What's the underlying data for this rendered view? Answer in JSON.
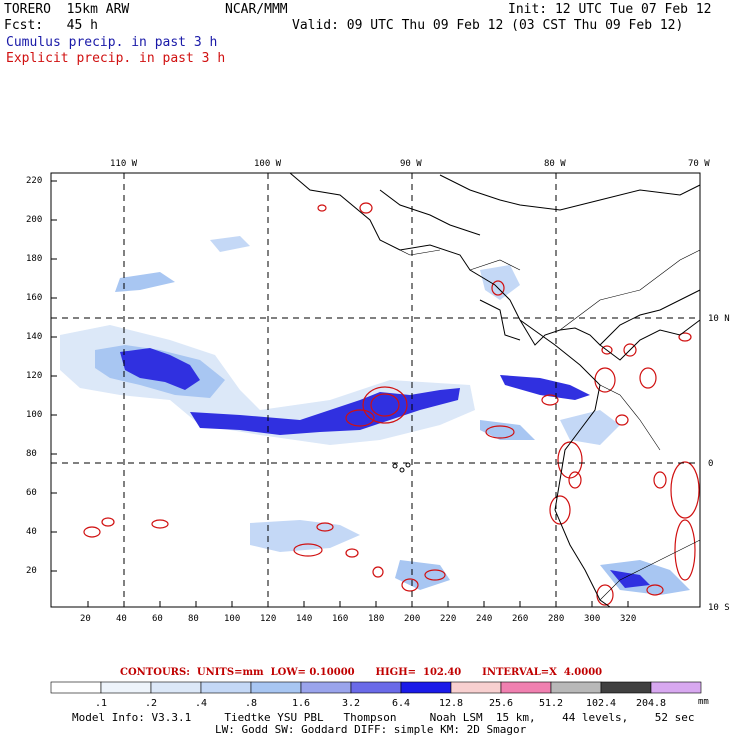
{
  "header": {
    "model": "TORERO  15km ARW",
    "org": "NCAR/MMM",
    "init": "Init: 12 UTC Tue 07 Feb 12",
    "fcst": "Fcst:   45 h",
    "valid": "Valid: 09 UTC Thu 09 Feb 12 (03 CST Thu 09 Feb 12)",
    "cumulus_label": "Cumulus precip. in past 3 h",
    "explicit_label": "Explicit precip. in past 3 h"
  },
  "axes": {
    "lon_labels": [
      "110 W",
      "100 W",
      "90 W",
      "80 W",
      "70 W"
    ],
    "lat_labels": [
      "10 N",
      "0",
      "10 S"
    ],
    "y_ticks": [
      "220",
      "200",
      "180",
      "160",
      "140",
      "120",
      "100",
      "80",
      "60",
      "40",
      "20"
    ],
    "x_ticks": [
      "20",
      "40",
      "60",
      "80",
      "100",
      "120",
      "140",
      "160",
      "180",
      "200",
      "220",
      "240",
      "260",
      "280",
      "300",
      "320"
    ]
  },
  "colorbar": {
    "title": "CONTOURS:  UNITS=mm  LOW= 0.10000      HIGH=  102.40      INTERVAL=X  4.0000",
    "ticks": [
      ".1",
      ".2",
      ".4",
      ".8",
      "1.6",
      "3.2",
      "6.4",
      "12.8",
      "25.6",
      "51.2",
      "102.4",
      "204.8"
    ],
    "unit": "mm",
    "colors": [
      "#ffffff",
      "#eef4fb",
      "#dce8f8",
      "#c4d8f6",
      "#a8c6f2",
      "#9aa4ec",
      "#6a6ae8",
      "#1a1ae8",
      "#f8d0d0",
      "#f080b0",
      "#b8b8b8",
      "#404040",
      "#d8a8f0"
    ]
  },
  "footer": {
    "line1": "Model Info: V3.3.1     Tiedtke YSU PBL   Thompson     Noah LSM  15 km,    44 levels,    52 sec",
    "line2": "LW: Godd SW: Goddard DIFF: simple KM: 2D Smagor"
  }
}
